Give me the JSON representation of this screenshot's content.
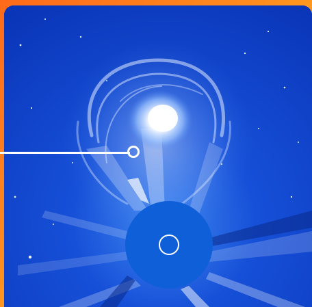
{
  "image": {
    "subject": "coronagraph-cme",
    "colors": {
      "frame_orange": "#ff7a1c",
      "frame_yellow": "#ffc23a",
      "sky_blue": "#0b3fd0",
      "occulter_blue": "#0f5fd8",
      "pointer_white": "#ffffff"
    },
    "icons": [
      "sun-disk-circle-icon",
      "pointer-ring-icon"
    ]
  }
}
